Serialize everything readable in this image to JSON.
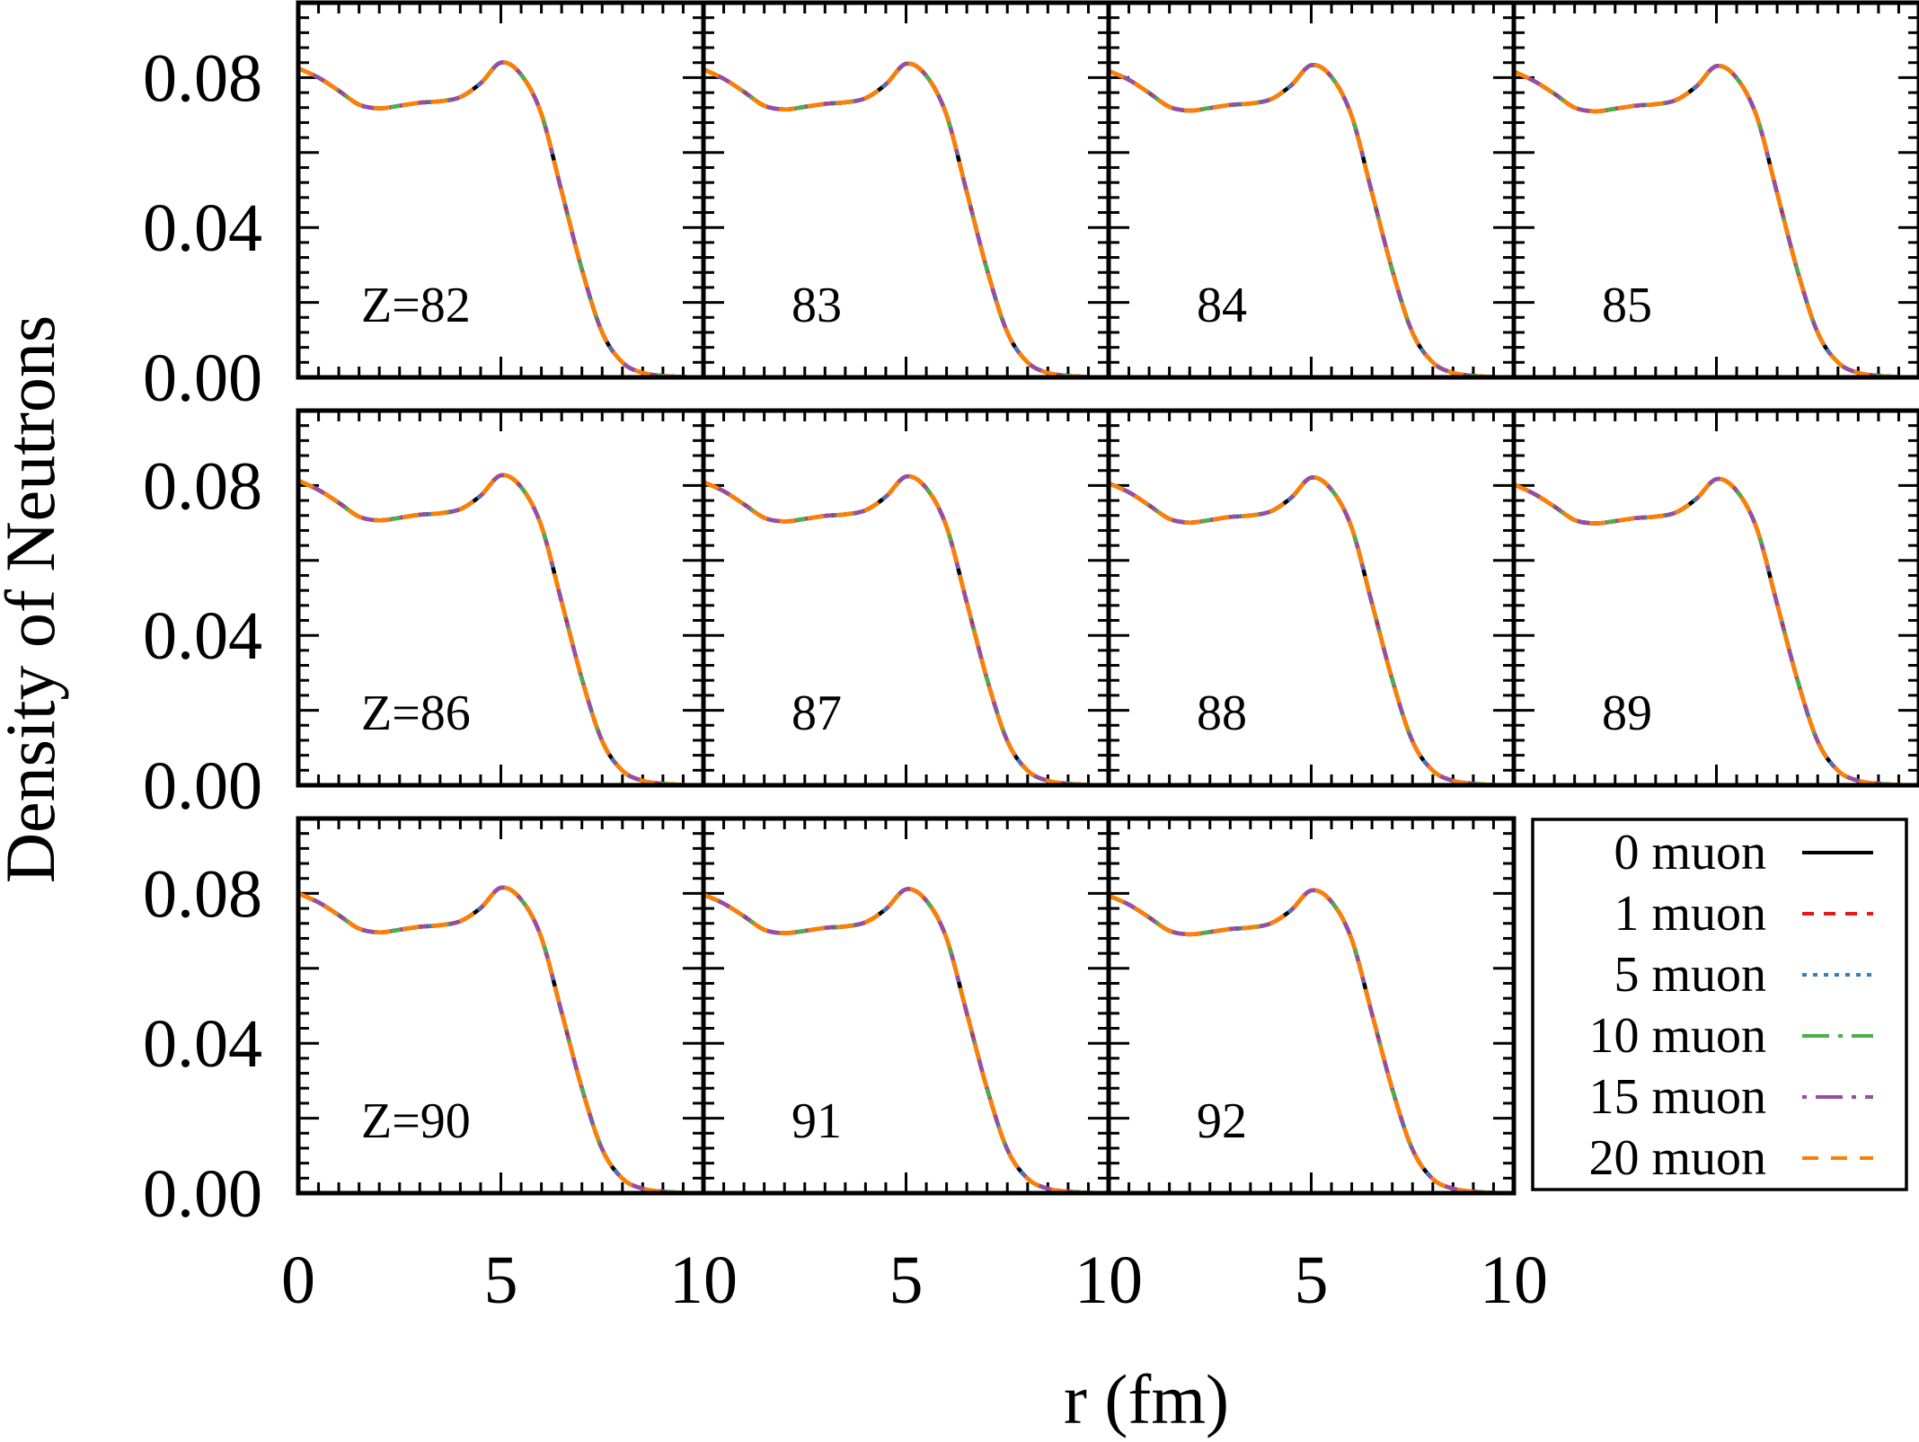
{
  "chart_data": {
    "type": "line",
    "title": "",
    "xlabel": "r (fm)",
    "ylabel": "Density of Neutrons",
    "xlim": [
      0,
      10
    ],
    "ylim": [
      0,
      0.1
    ],
    "x_ticks": [
      0,
      5,
      10
    ],
    "x_tick_labels": [
      "0",
      "5",
      "10"
    ],
    "y_ticks": [
      0.0,
      0.04,
      0.08
    ],
    "y_tick_labels": [
      "0.00",
      "0.04",
      "0.08"
    ],
    "legend_placement": "bottom-right panel slot",
    "series": [
      {
        "name": "0 muon",
        "color": "#000000",
        "style": "solid"
      },
      {
        "name": "1 muon",
        "color": "#e41a1c",
        "style": "dashed"
      },
      {
        "name": "5 muon",
        "color": "#377eb8",
        "style": "dotted"
      },
      {
        "name": "10 muon",
        "color": "#4daf4a",
        "style": "dash-dot"
      },
      {
        "name": "15 muon",
        "color": "#984ea3",
        "style": "dot-dash"
      },
      {
        "name": "20 muon",
        "color": "#ff7f00",
        "style": "dashed"
      }
    ],
    "r": [
      0,
      0.5,
      1,
      1.5,
      2,
      2.5,
      3,
      3.5,
      4,
      4.5,
      5,
      5.5,
      6,
      6.5,
      7,
      7.5,
      8,
      8.5,
      9,
      9.5,
      10
    ],
    "panels": [
      {
        "label": "Z=82",
        "density": [
          0.0825,
          0.08,
          0.0765,
          0.0728,
          0.0718,
          0.0725,
          0.0733,
          0.0737,
          0.0748,
          0.0785,
          0.084,
          0.0808,
          0.0703,
          0.0496,
          0.0288,
          0.012,
          0.004,
          0.0012,
          0.0004,
          0.0001,
          0
        ]
      },
      {
        "label": "83",
        "density": [
          0.0822,
          0.0797,
          0.0762,
          0.0725,
          0.0715,
          0.0722,
          0.073,
          0.0734,
          0.0745,
          0.0782,
          0.0837,
          0.0805,
          0.07,
          0.0494,
          0.0287,
          0.012,
          0.004,
          0.0012,
          0.0004,
          0.0001,
          0
        ]
      },
      {
        "label": "84",
        "density": [
          0.0818,
          0.0794,
          0.0759,
          0.0722,
          0.0712,
          0.0719,
          0.0727,
          0.0731,
          0.0742,
          0.0779,
          0.0833,
          0.0802,
          0.0697,
          0.0492,
          0.0286,
          0.0119,
          0.004,
          0.0012,
          0.0004,
          0.0001,
          0
        ]
      },
      {
        "label": "85",
        "density": [
          0.0816,
          0.0791,
          0.0757,
          0.072,
          0.071,
          0.0717,
          0.0725,
          0.0729,
          0.074,
          0.0776,
          0.0831,
          0.0799,
          0.0695,
          0.0491,
          0.0285,
          0.0119,
          0.004,
          0.0012,
          0.0004,
          0.0001,
          0
        ]
      },
      {
        "label": "Z=86",
        "density": [
          0.0813,
          0.0788,
          0.0754,
          0.0717,
          0.0707,
          0.0714,
          0.0722,
          0.0726,
          0.0737,
          0.0773,
          0.0827,
          0.0796,
          0.0692,
          0.0489,
          0.0284,
          0.0118,
          0.0039,
          0.0012,
          0.0004,
          0.0001,
          0
        ]
      },
      {
        "label": "87",
        "density": [
          0.0809,
          0.0785,
          0.075,
          0.0714,
          0.0704,
          0.0711,
          0.0719,
          0.0723,
          0.0734,
          0.077,
          0.0824,
          0.0793,
          0.069,
          0.0487,
          0.0283,
          0.0118,
          0.0039,
          0.0012,
          0.0004,
          0.0001,
          0
        ]
      },
      {
        "label": "88",
        "density": [
          0.0806,
          0.0782,
          0.0747,
          0.0711,
          0.0701,
          0.0708,
          0.0716,
          0.072,
          0.0731,
          0.0767,
          0.0821,
          0.0789,
          0.0687,
          0.0485,
          0.0282,
          0.0117,
          0.0039,
          0.0012,
          0.0004,
          0.0001,
          0
        ]
      },
      {
        "label": "89",
        "density": [
          0.0803,
          0.0778,
          0.0744,
          0.0708,
          0.0699,
          0.0705,
          0.0713,
          0.0717,
          0.0728,
          0.0764,
          0.0817,
          0.0786,
          0.0684,
          0.0483,
          0.0281,
          0.0117,
          0.0039,
          0.0012,
          0.0004,
          0.0001,
          0
        ]
      },
      {
        "label": "Z=90",
        "density": [
          0.08,
          0.0776,
          0.0742,
          0.0706,
          0.0696,
          0.0703,
          0.0711,
          0.0715,
          0.0726,
          0.0761,
          0.0815,
          0.0784,
          0.0682,
          0.0482,
          0.028,
          0.0117,
          0.0039,
          0.0012,
          0.0004,
          0.0001,
          0
        ]
      },
      {
        "label": "91",
        "density": [
          0.0797,
          0.0773,
          0.0739,
          0.0703,
          0.0694,
          0.07,
          0.0708,
          0.0712,
          0.0723,
          0.0758,
          0.0811,
          0.0781,
          0.068,
          0.048,
          0.0279,
          0.0116,
          0.0039,
          0.0012,
          0.0004,
          0.0001,
          0
        ]
      },
      {
        "label": "92",
        "density": [
          0.0794,
          0.077,
          0.0736,
          0.07,
          0.0691,
          0.0697,
          0.0705,
          0.0709,
          0.072,
          0.0755,
          0.0808,
          0.0778,
          0.0677,
          0.0478,
          0.0278,
          0.0116,
          0.0038,
          0.0012,
          0.0004,
          0.0001,
          0
        ]
      }
    ]
  }
}
